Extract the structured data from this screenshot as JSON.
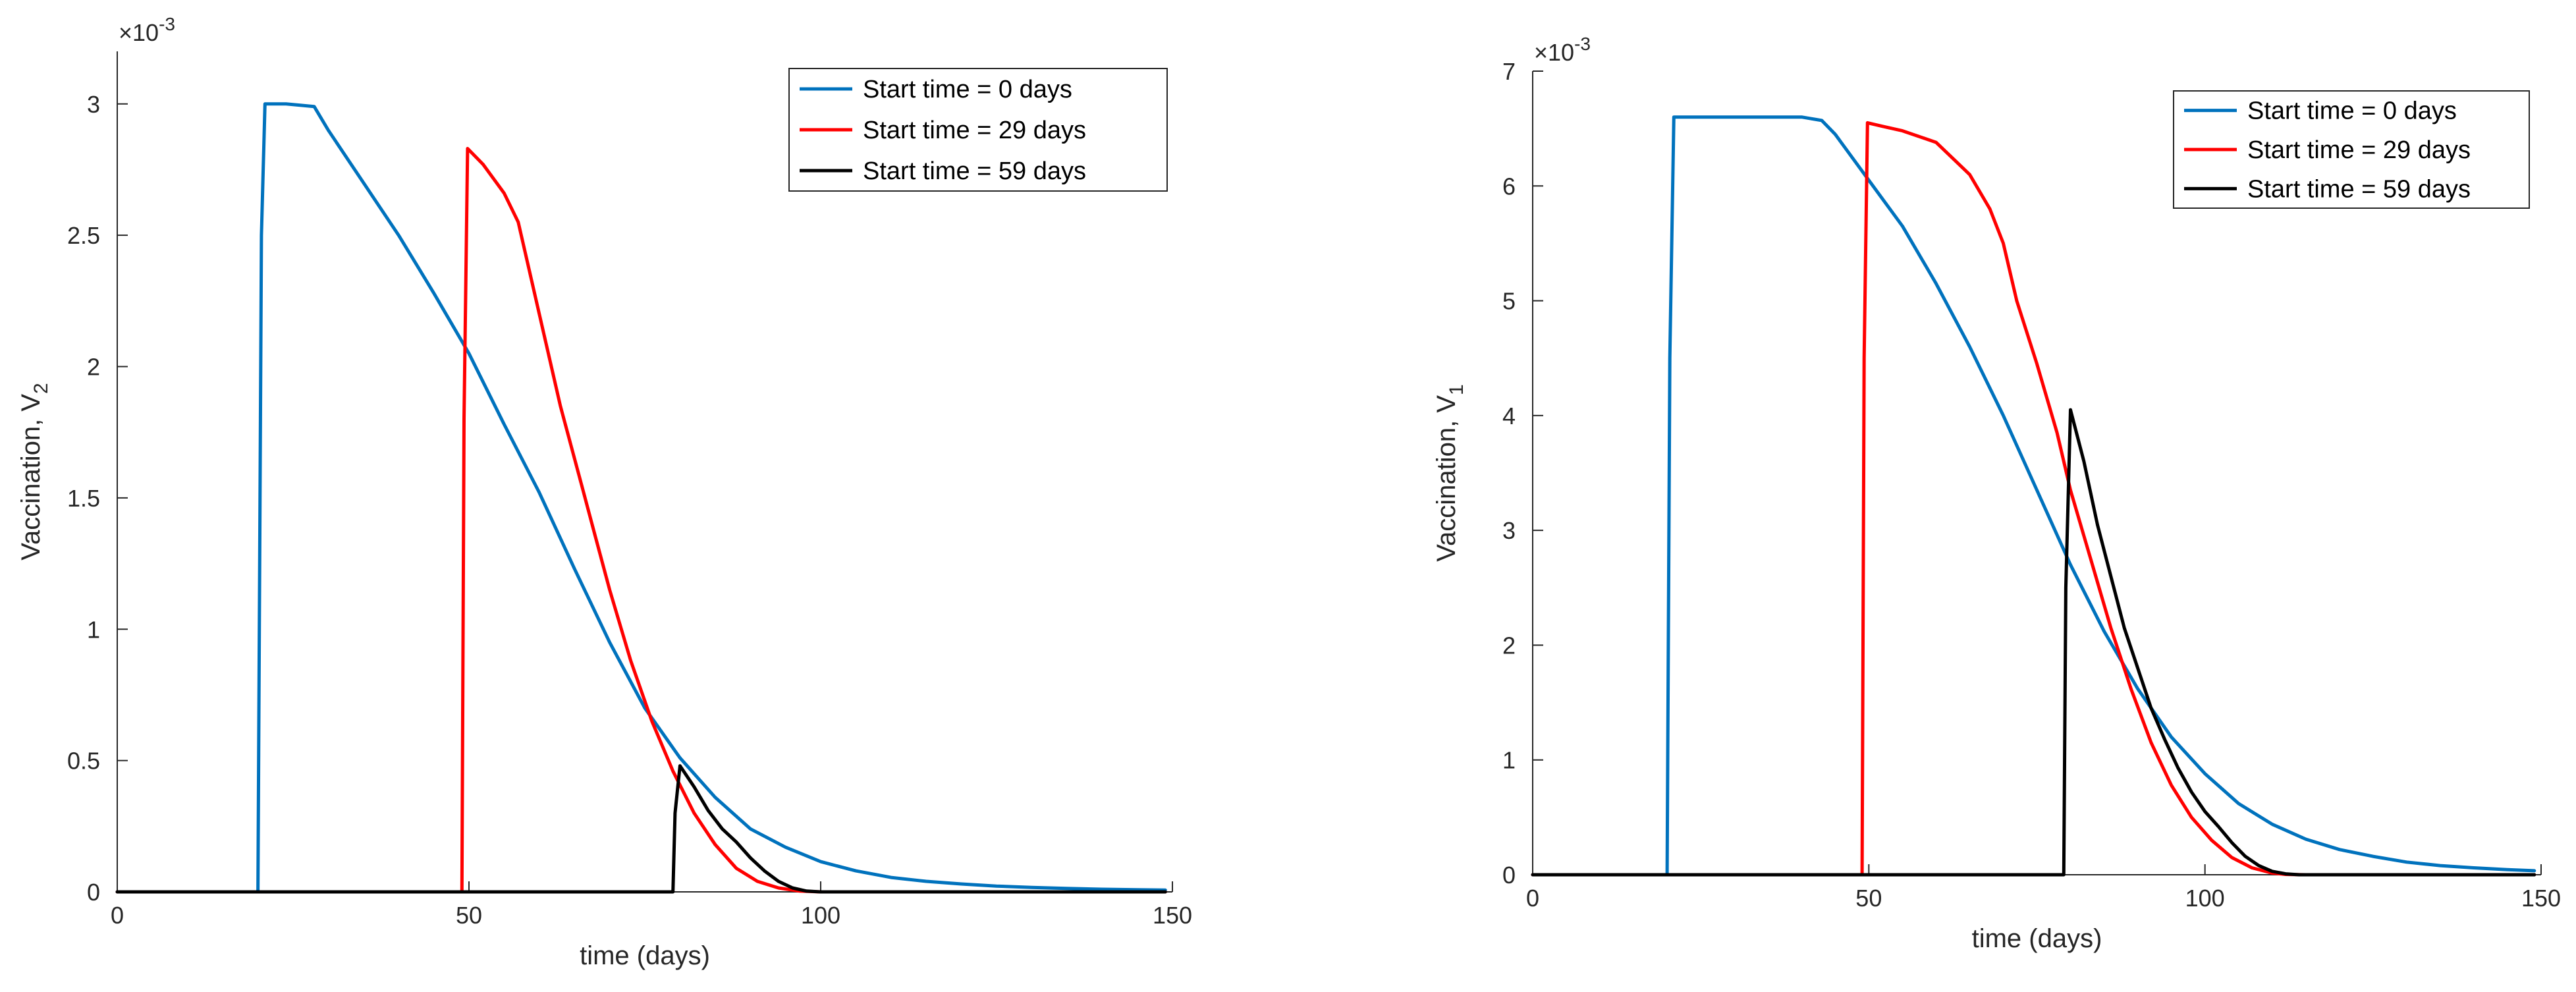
{
  "chart_data": [
    {
      "type": "line",
      "xlabel": "time (days)",
      "ylabel": "Vaccination, V",
      "ylabel_subscript": "2",
      "exponent_label": "×10",
      "exponent_power": "-3",
      "xlim": [
        0,
        150
      ],
      "ylim": [
        0,
        3.2
      ],
      "xticks": [
        0,
        50,
        100,
        150
      ],
      "yticks": [
        0,
        0.5,
        1,
        1.5,
        2,
        2.5,
        3
      ],
      "ytick_labels": [
        "0",
        "0.5",
        "1",
        "1.5",
        "2",
        "2.5",
        "3"
      ],
      "legend_position": "top-right",
      "grid": false,
      "series": [
        {
          "name": "Start time = 0 days",
          "color": "#0072BD",
          "x": [
            0,
            20,
            20.5,
            21,
            22,
            24,
            26,
            28,
            30,
            35,
            40,
            45,
            50,
            55,
            60,
            65,
            70,
            75,
            80,
            85,
            90,
            95,
            100,
            105,
            110,
            115,
            120,
            125,
            130,
            135,
            140,
            145,
            149
          ],
          "y": [
            0,
            0,
            2.5,
            3.0,
            3.0,
            3.0,
            2.995,
            2.99,
            2.9,
            2.7,
            2.5,
            2.28,
            2.05,
            1.78,
            1.52,
            1.23,
            0.95,
            0.7,
            0.51,
            0.36,
            0.24,
            0.17,
            0.115,
            0.08,
            0.055,
            0.04,
            0.03,
            0.022,
            0.017,
            0.013,
            0.01,
            0.008,
            0.007
          ]
        },
        {
          "name": "Start time = 29 days",
          "color": "#FF0000",
          "x": [
            0,
            49,
            49.3,
            49.8,
            52,
            55,
            57,
            60,
            63,
            66,
            68,
            70,
            73,
            76,
            79,
            82,
            85,
            88,
            91,
            94,
            97,
            100,
            149
          ],
          "y": [
            0,
            0,
            1.8,
            2.83,
            2.77,
            2.66,
            2.55,
            2.2,
            1.85,
            1.55,
            1.35,
            1.15,
            0.88,
            0.65,
            0.46,
            0.3,
            0.18,
            0.09,
            0.04,
            0.015,
            0.003,
            0,
            0
          ]
        },
        {
          "name": "Start time = 59 days",
          "color": "#000000",
          "x": [
            0,
            79,
            79.3,
            80,
            82,
            84,
            86,
            88,
            90,
            92,
            94,
            96,
            98,
            100,
            149
          ],
          "y": [
            0,
            0,
            0.3,
            0.48,
            0.4,
            0.31,
            0.24,
            0.19,
            0.13,
            0.08,
            0.04,
            0.015,
            0.003,
            0,
            0
          ]
        }
      ]
    },
    {
      "type": "line",
      "xlabel": "time (days)",
      "ylabel": "Vaccination, V",
      "ylabel_subscript": "1",
      "exponent_label": "×10",
      "exponent_power": "-3",
      "xlim": [
        0,
        150
      ],
      "ylim": [
        0,
        7
      ],
      "xticks": [
        0,
        50,
        100,
        150
      ],
      "yticks": [
        0,
        1,
        2,
        3,
        4,
        5,
        6,
        7
      ],
      "ytick_labels": [
        "0",
        "1",
        "2",
        "3",
        "4",
        "5",
        "6",
        "7"
      ],
      "legend_position": "top-right",
      "grid": false,
      "series": [
        {
          "name": "Start time = 0 days",
          "color": "#0072BD",
          "x": [
            0,
            20,
            20.4,
            21,
            25,
            30,
            35,
            40,
            43,
            45,
            50,
            55,
            60,
            65,
            70,
            75,
            80,
            85,
            90,
            95,
            100,
            105,
            110,
            115,
            120,
            125,
            130,
            135,
            140,
            145,
            149
          ],
          "y": [
            0,
            0,
            4.5,
            6.6,
            6.6,
            6.6,
            6.6,
            6.6,
            6.57,
            6.45,
            6.05,
            5.65,
            5.15,
            4.6,
            4.0,
            3.35,
            2.7,
            2.12,
            1.62,
            1.2,
            0.88,
            0.62,
            0.44,
            0.31,
            0.22,
            0.16,
            0.11,
            0.08,
            0.06,
            0.045,
            0.035
          ]
        },
        {
          "name": "Start time = 29 days",
          "color": "#FF0000",
          "x": [
            0,
            49,
            49.3,
            49.8,
            52,
            55,
            60,
            65,
            68,
            70,
            72,
            75,
            78,
            80,
            83,
            86,
            89,
            92,
            95,
            98,
            101,
            104,
            107,
            110,
            112,
            115,
            149
          ],
          "y": [
            0,
            0,
            4.5,
            6.55,
            6.52,
            6.48,
            6.38,
            6.1,
            5.8,
            5.5,
            5.0,
            4.45,
            3.85,
            3.35,
            2.75,
            2.15,
            1.62,
            1.15,
            0.78,
            0.5,
            0.3,
            0.15,
            0.06,
            0.015,
            0.003,
            0,
            0
          ]
        },
        {
          "name": "Start time = 59 days",
          "color": "#000000",
          "x": [
            0,
            79,
            79.3,
            80,
            82,
            84,
            86,
            88,
            90,
            92,
            94,
            96,
            98,
            100,
            102,
            104,
            106,
            108,
            110,
            112,
            114,
            149
          ],
          "y": [
            0,
            0,
            2.5,
            4.05,
            3.6,
            3.05,
            2.6,
            2.15,
            1.8,
            1.45,
            1.18,
            0.93,
            0.72,
            0.55,
            0.42,
            0.28,
            0.16,
            0.08,
            0.03,
            0.008,
            0,
            0
          ]
        }
      ]
    }
  ]
}
